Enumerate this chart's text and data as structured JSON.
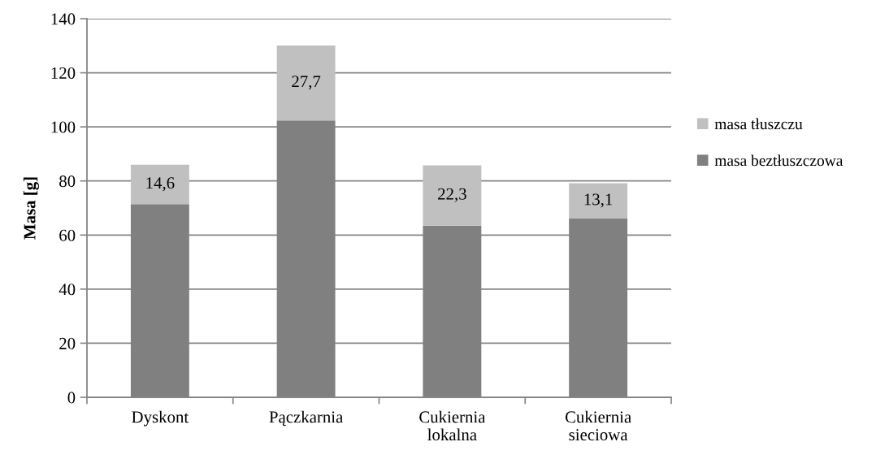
{
  "chart_data": {
    "type": "bar",
    "stacked": true,
    "ylabel": "Masa [g]",
    "categories": [
      "Dyskont",
      "Pączkarnia",
      "Cukiernia lokalna",
      "Cukiernia sieciowa"
    ],
    "series": [
      {
        "name": "masa beztłuszczowa",
        "color": "#808080",
        "values": [
          71.4,
          102.4,
          63.5,
          66.1
        ]
      },
      {
        "name": "masa tłuszczu",
        "color": "#c0c0c0",
        "values": [
          14.6,
          27.7,
          22.3,
          13.1
        ],
        "value_labels": [
          "14,6",
          "27,7",
          "22,3",
          "13,1"
        ]
      }
    ],
    "ylim": [
      0,
      140
    ],
    "yticks": [
      0,
      20,
      40,
      60,
      80,
      100,
      120,
      140
    ],
    "grid": "y",
    "legend": "right"
  }
}
